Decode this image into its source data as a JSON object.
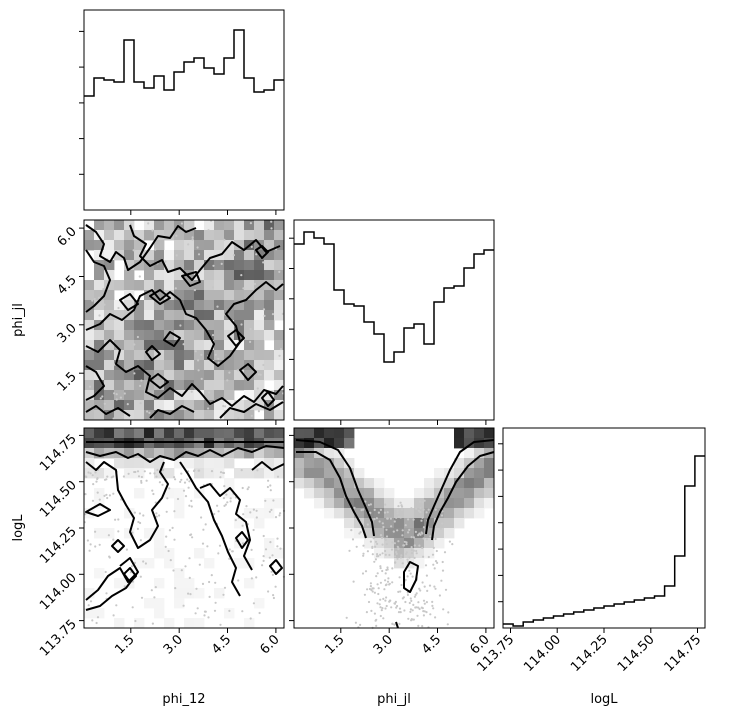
{
  "chart_data": {
    "type": "corner",
    "parameters": [
      "phi_12",
      "phi_jl",
      "logL"
    ],
    "ranges": {
      "phi_12": [
        0.05,
        6.25
      ],
      "phi_jl": [
        0.05,
        6.25
      ],
      "logL": [
        113.71,
        114.79
      ]
    },
    "ticks": {
      "phi_12": [
        "1.5",
        "3.0",
        "4.5",
        "6.0"
      ],
      "phi_jl": [
        "1.5",
        "3.0",
        "4.5",
        "6.0"
      ],
      "logL": [
        "113.75",
        "114.00",
        "114.25",
        "114.50",
        "114.75"
      ]
    },
    "xlabels": {
      "phi_12": "phi_12",
      "phi_jl": "phi_jl",
      "logL": "logL"
    },
    "ylabels": {
      "phi_jl": "phi_jl",
      "logL": "logL"
    },
    "histograms": {
      "phi_12": [
        0.57,
        0.66,
        0.65,
        0.64,
        0.85,
        0.64,
        0.61,
        0.67,
        0.6,
        0.69,
        0.74,
        0.76,
        0.71,
        0.68,
        0.76,
        0.9,
        0.66,
        0.59,
        0.6,
        0.65
      ],
      "phi_jl": [
        0.88,
        0.94,
        0.91,
        0.88,
        0.65,
        0.58,
        0.57,
        0.49,
        0.43,
        0.29,
        0.34,
        0.46,
        0.48,
        0.38,
        0.59,
        0.66,
        0.67,
        0.76,
        0.83,
        0.85
      ],
      "logL": [
        0.02,
        0.01,
        0.03,
        0.04,
        0.05,
        0.06,
        0.07,
        0.08,
        0.09,
        0.1,
        0.11,
        0.12,
        0.13,
        0.14,
        0.15,
        0.16,
        0.21,
        0.36,
        0.71,
        0.86
      ]
    }
  }
}
